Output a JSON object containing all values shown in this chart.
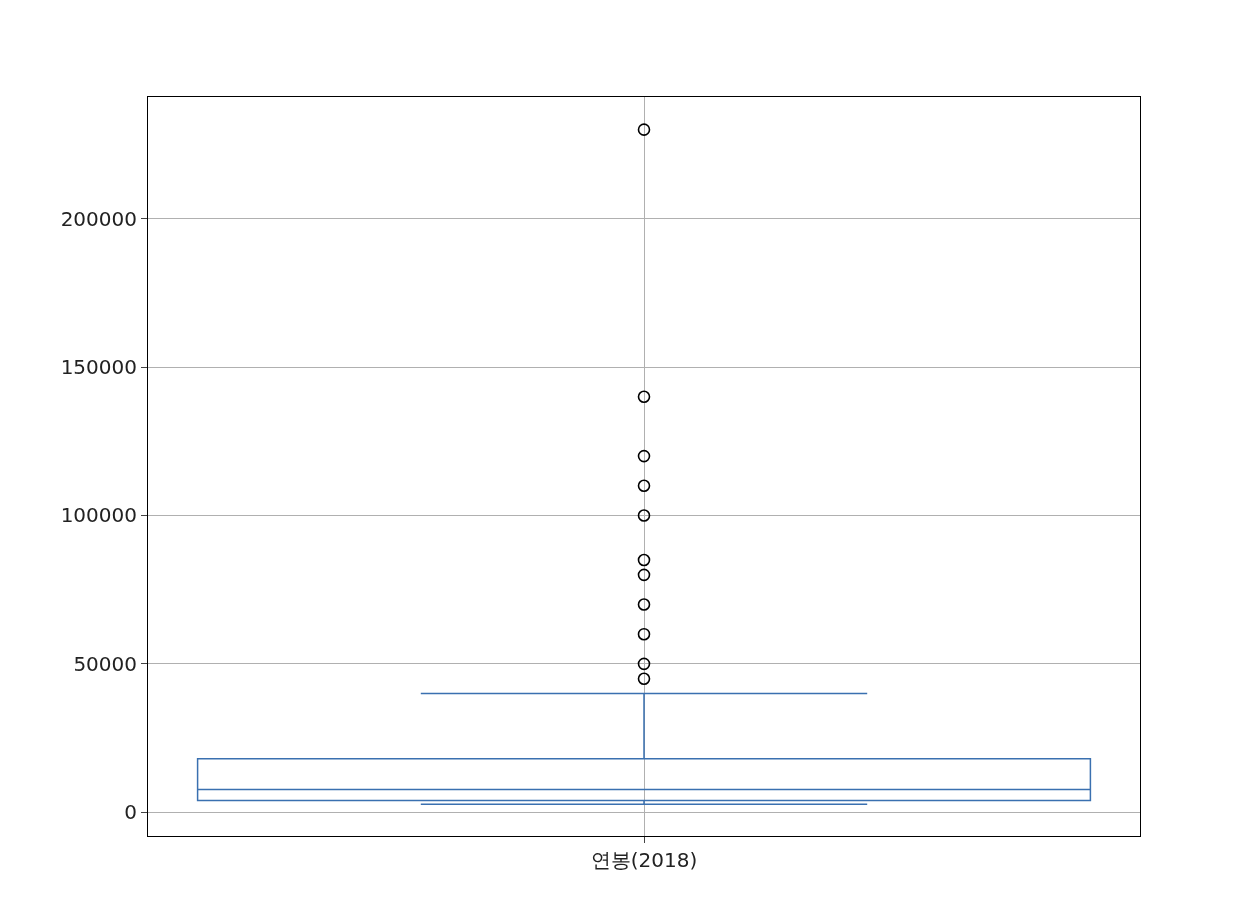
{
  "chart_data": {
    "type": "box",
    "categories": [
      "연봉(2018)"
    ],
    "boxes": [
      {
        "low": 2700,
        "q1": 4000,
        "median": 7700,
        "q3": 18000,
        "high": 40000,
        "outliers": [
          45000,
          50000,
          60000,
          70000,
          80000,
          85000,
          100000,
          110000,
          120000,
          140000,
          230000
        ]
      }
    ],
    "color": "#3a70b0",
    "ylim": [
      -8000,
      241000
    ],
    "yticks": [
      0,
      50000,
      100000,
      150000,
      200000
    ],
    "grid": true
  }
}
